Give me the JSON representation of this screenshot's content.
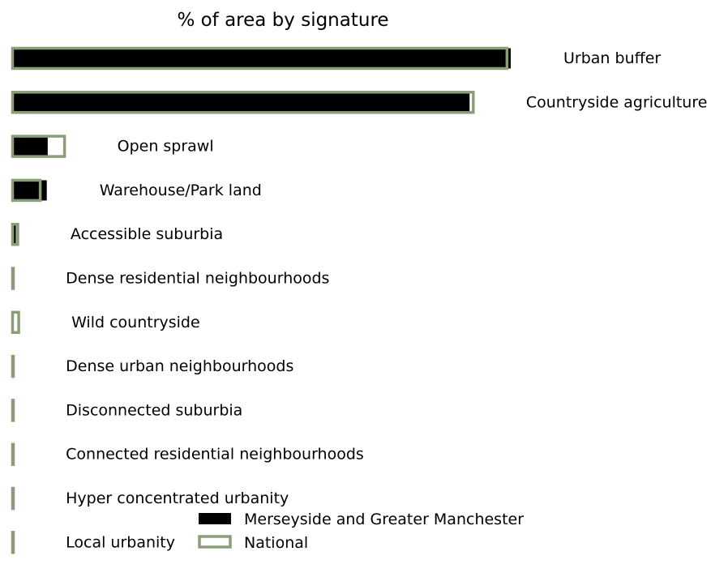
{
  "chart_data": {
    "type": "bar",
    "orientation": "horizontal",
    "title": "% of area by signature",
    "xlabel": "",
    "ylabel": "",
    "xlim": [
      0,
      60
    ],
    "grid": false,
    "legend_position": "bottom-center",
    "categories": [
      "Urban buffer",
      "Countryside agriculture",
      "Open sprawl",
      "Warehouse/Park land",
      "Accessible suburbia",
      "Dense residential neighbourhoods",
      "Wild countryside",
      "Dense urban neighbourhoods",
      "Disconnected suburbia",
      "Connected residential neighbourhoods",
      "Hyper concentrated urbanity",
      "Local urbanity"
    ],
    "series": [
      {
        "name": "Merseyside and Greater Manchester",
        "style": "filled",
        "color": "#000000",
        "values": [
          53.3,
          48.9,
          3.8,
          3.7,
          0.4,
          0.1,
          0.0,
          0.05,
          0.05,
          0.05,
          0.05,
          0.02
        ]
      },
      {
        "name": "National",
        "style": "outline",
        "color": "#8c9d7a",
        "values": [
          52.9,
          49.3,
          5.6,
          3.0,
          0.6,
          0.1,
          0.7,
          0.1,
          0.1,
          0.1,
          0.1,
          0.1
        ]
      }
    ]
  }
}
